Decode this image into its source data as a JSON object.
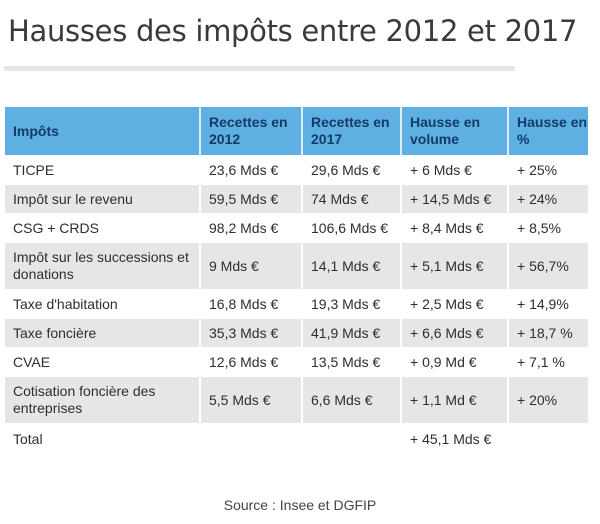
{
  "title": "Hausses des impôts entre 2012 et 2017",
  "colors": {
    "header_bg": "#5fb0e2",
    "header_text": "#123a6a",
    "alt_row_bg": "#e6e6e6"
  },
  "table": {
    "headers": [
      "Impôts",
      "Recettes en 2012",
      "Recettes en 2017",
      "Hausse en volume",
      "Hausse en %"
    ],
    "rows": [
      {
        "impot": "TICPE",
        "r2012": "23,6 Mds €",
        "r2017": "29,6 Mds €",
        "volume": "+ 6 Mds €",
        "pct": "+ 25%"
      },
      {
        "impot": "Impôt sur le revenu",
        "r2012": "59,5 Mds €",
        "r2017": "74 Mds €",
        "volume": "+ 14,5 Mds €",
        "pct": "+ 24%"
      },
      {
        "impot": "CSG + CRDS",
        "r2012": "98,2 Mds €",
        "r2017": "106,6 Mds €",
        "volume": "+ 8,4 Mds €",
        "pct": "+ 8,5%"
      },
      {
        "impot": "Impôt sur les successions et donations",
        "r2012": "9 Mds €",
        "r2017": "14,1 Mds €",
        "volume": "+ 5,1 Mds €",
        "pct": "+ 56,7%"
      },
      {
        "impot": "Taxe d'habitation",
        "r2012": "16,8 Mds €",
        "r2017": "19,3 Mds €",
        "volume": "+ 2,5 Mds €",
        "pct": "+ 14,9%"
      },
      {
        "impot": "Taxe foncière",
        "r2012": "35,3 Mds €",
        "r2017": "41,9 Mds €",
        "volume": "+ 6,6 Mds €",
        "pct": "+ 18,7 %"
      },
      {
        "impot": "CVAE",
        "r2012": "12,6 Mds €",
        "r2017": "13,5 Mds €",
        "volume": "+ 0,9 Md €",
        "pct": "+ 7,1 %"
      },
      {
        "impot": "Cotisation foncière des entreprises",
        "r2012": "5,5 Mds €",
        "r2017": "6,6 Mds €",
        "volume": "+ 1,1 Md €",
        "pct": "+ 20%"
      }
    ],
    "total": {
      "label": "Total",
      "volume": "+ 45,1 Mds €"
    }
  },
  "source": "Source : Insee et DGFIP"
}
